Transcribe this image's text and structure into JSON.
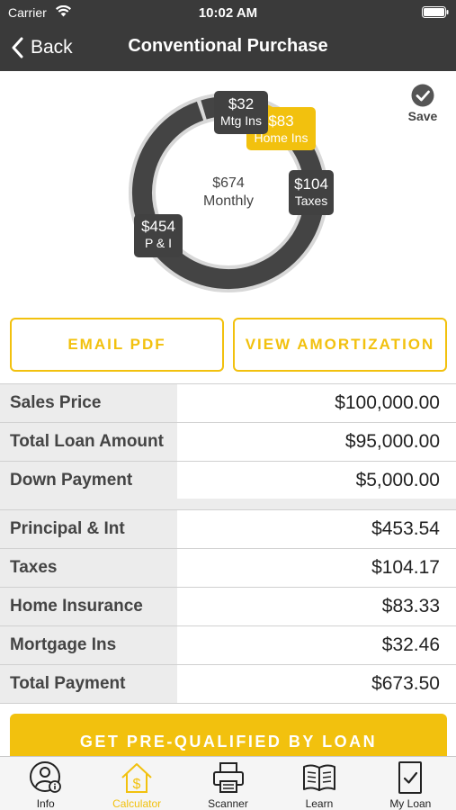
{
  "status_bar": {
    "carrier": "Carrier",
    "time": "10:02 AM"
  },
  "nav": {
    "back_label": "Back",
    "title": "Conventional Purchase"
  },
  "summary": {
    "center_amount": "$674",
    "center_label": "Monthly",
    "segments": [
      {
        "amount": "$454",
        "name": "P & I",
        "value": 453.54,
        "color": "#444444"
      },
      {
        "amount": "$104",
        "name": "Taxes",
        "value": 104.17,
        "color": "#444444"
      },
      {
        "amount": "$83",
        "name": "Home Ins",
        "value": 83.33,
        "color": "#f2c10e"
      },
      {
        "amount": "$32",
        "name": "Mtg Ins",
        "value": 32.46,
        "color": "#444444"
      }
    ],
    "save_label": "Save"
  },
  "actions": {
    "email_pdf": "EMAIL PDF",
    "view_amortization": "VIEW AMORTIZATION"
  },
  "loan_table": {
    "rows": [
      {
        "label": "Sales Price",
        "value": "$100,000.00"
      },
      {
        "label": "Total Loan Amount",
        "value": "$95,000.00"
      },
      {
        "label": "Down Payment",
        "value": "$5,000.00"
      }
    ]
  },
  "payment_table": {
    "rows": [
      {
        "label": "Principal & Int",
        "value": "$453.54"
      },
      {
        "label": "Taxes",
        "value": "$104.17"
      },
      {
        "label": "Home Insurance",
        "value": "$83.33"
      },
      {
        "label": "Mortgage Ins",
        "value": "$32.46"
      },
      {
        "label": "Total Payment",
        "value": "$673.50"
      }
    ]
  },
  "cta": {
    "label": "GET PRE-QUALIFIED BY LOAN"
  },
  "tabs": [
    {
      "label": "Info",
      "icon": "info-person-icon"
    },
    {
      "label": "Calculator",
      "icon": "house-dollar-icon",
      "active": true
    },
    {
      "label": "Scanner",
      "icon": "printer-scanner-icon"
    },
    {
      "label": "Learn",
      "icon": "open-book-icon"
    },
    {
      "label": "My Loan",
      "icon": "document-check-icon"
    }
  ],
  "colors": {
    "accent": "#f2c10e",
    "header_bg": "#3a3a3a",
    "ring_dark": "#444444"
  }
}
